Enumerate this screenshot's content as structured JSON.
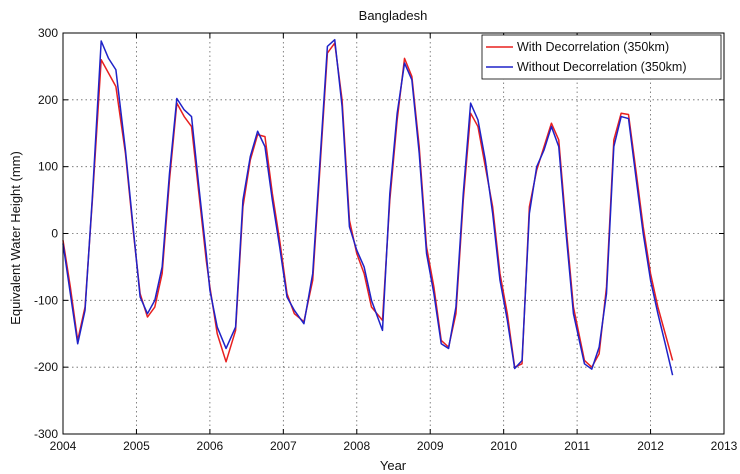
{
  "chart_data": {
    "type": "line",
    "title": "Bangladesh",
    "xlabel": "Year",
    "ylabel": "Equivalent Water Height (mm)",
    "xlim": [
      2004,
      2013
    ],
    "ylim": [
      -300,
      300
    ],
    "xticks": [
      2004,
      2005,
      2006,
      2007,
      2008,
      2009,
      2010,
      2011,
      2012,
      2013
    ],
    "yticks": [
      300,
      200,
      100,
      0,
      -100,
      -200,
      -300
    ],
    "grid": true,
    "legend_position": "top-right",
    "series": [
      {
        "name": "With Decorrelation (350km)",
        "color": "#e8201f",
        "points": [
          [
            2004.0,
            -10
          ],
          [
            2004.1,
            -80
          ],
          [
            2004.2,
            -160
          ],
          [
            2004.3,
            -110
          ],
          [
            2004.4,
            50
          ],
          [
            2004.52,
            260
          ],
          [
            2004.62,
            240
          ],
          [
            2004.72,
            220
          ],
          [
            2004.85,
            120
          ],
          [
            2004.95,
            10
          ],
          [
            2005.05,
            -90
          ],
          [
            2005.15,
            -125
          ],
          [
            2005.25,
            -110
          ],
          [
            2005.35,
            -60
          ],
          [
            2005.45,
            80
          ],
          [
            2005.55,
            195
          ],
          [
            2005.65,
            175
          ],
          [
            2005.75,
            160
          ],
          [
            2005.85,
            60
          ],
          [
            2005.95,
            -40
          ],
          [
            2006.0,
            -80
          ],
          [
            2006.1,
            -150
          ],
          [
            2006.22,
            -192
          ],
          [
            2006.35,
            -145
          ],
          [
            2006.45,
            40
          ],
          [
            2006.55,
            110
          ],
          [
            2006.65,
            148
          ],
          [
            2006.75,
            145
          ],
          [
            2006.85,
            60
          ],
          [
            2006.95,
            -10
          ],
          [
            2007.05,
            -90
          ],
          [
            2007.15,
            -120
          ],
          [
            2007.28,
            -132
          ],
          [
            2007.4,
            -70
          ],
          [
            2007.5,
            100
          ],
          [
            2007.6,
            270
          ],
          [
            2007.7,
            285
          ],
          [
            2007.8,
            200
          ],
          [
            2007.9,
            20
          ],
          [
            2008.0,
            -30
          ],
          [
            2008.1,
            -60
          ],
          [
            2008.2,
            -110
          ],
          [
            2008.35,
            -130
          ],
          [
            2008.45,
            50
          ],
          [
            2008.55,
            170
          ],
          [
            2008.65,
            262
          ],
          [
            2008.75,
            235
          ],
          [
            2008.85,
            130
          ],
          [
            2008.95,
            -20
          ],
          [
            2009.05,
            -80
          ],
          [
            2009.15,
            -160
          ],
          [
            2009.25,
            -170
          ],
          [
            2009.35,
            -120
          ],
          [
            2009.45,
            50
          ],
          [
            2009.55,
            180
          ],
          [
            2009.65,
            160
          ],
          [
            2009.75,
            100
          ],
          [
            2009.85,
            40
          ],
          [
            2009.95,
            -60
          ],
          [
            2010.05,
            -120
          ],
          [
            2010.15,
            -200
          ],
          [
            2010.25,
            -195
          ],
          [
            2010.35,
            40
          ],
          [
            2010.45,
            95
          ],
          [
            2010.55,
            130
          ],
          [
            2010.65,
            165
          ],
          [
            2010.75,
            140
          ],
          [
            2010.85,
            10
          ],
          [
            2010.95,
            -110
          ],
          [
            2011.1,
            -190
          ],
          [
            2011.2,
            -200
          ],
          [
            2011.3,
            -180
          ],
          [
            2011.4,
            -80
          ],
          [
            2011.5,
            140
          ],
          [
            2011.6,
            180
          ],
          [
            2011.7,
            178
          ],
          [
            2011.8,
            95
          ],
          [
            2011.9,
            10
          ],
          [
            2012.0,
            -60
          ],
          [
            2012.1,
            -110
          ],
          [
            2012.2,
            -150
          ],
          [
            2012.3,
            -190
          ]
        ]
      },
      {
        "name": "Without Decorrelation (350km)",
        "color": "#1f22c8",
        "points": [
          [
            2004.0,
            -15
          ],
          [
            2004.1,
            -90
          ],
          [
            2004.2,
            -165
          ],
          [
            2004.3,
            -115
          ],
          [
            2004.4,
            55
          ],
          [
            2004.52,
            288
          ],
          [
            2004.62,
            262
          ],
          [
            2004.72,
            245
          ],
          [
            2004.85,
            125
          ],
          [
            2004.95,
            15
          ],
          [
            2005.05,
            -95
          ],
          [
            2005.15,
            -120
          ],
          [
            2005.25,
            -100
          ],
          [
            2005.35,
            -50
          ],
          [
            2005.45,
            90
          ],
          [
            2005.55,
            202
          ],
          [
            2005.65,
            185
          ],
          [
            2005.75,
            175
          ],
          [
            2005.85,
            70
          ],
          [
            2005.95,
            -30
          ],
          [
            2006.0,
            -85
          ],
          [
            2006.1,
            -140
          ],
          [
            2006.22,
            -172
          ],
          [
            2006.35,
            -140
          ],
          [
            2006.45,
            50
          ],
          [
            2006.55,
            115
          ],
          [
            2006.65,
            153
          ],
          [
            2006.75,
            130
          ],
          [
            2006.85,
            50
          ],
          [
            2006.95,
            -20
          ],
          [
            2007.05,
            -95
          ],
          [
            2007.15,
            -115
          ],
          [
            2007.28,
            -135
          ],
          [
            2007.4,
            -60
          ],
          [
            2007.5,
            110
          ],
          [
            2007.6,
            280
          ],
          [
            2007.7,
            290
          ],
          [
            2007.8,
            190
          ],
          [
            2007.9,
            10
          ],
          [
            2008.0,
            -25
          ],
          [
            2008.1,
            -50
          ],
          [
            2008.2,
            -100
          ],
          [
            2008.35,
            -145
          ],
          [
            2008.45,
            60
          ],
          [
            2008.55,
            180
          ],
          [
            2008.65,
            255
          ],
          [
            2008.75,
            230
          ],
          [
            2008.85,
            120
          ],
          [
            2008.95,
            -30
          ],
          [
            2009.05,
            -90
          ],
          [
            2009.15,
            -165
          ],
          [
            2009.25,
            -172
          ],
          [
            2009.35,
            -110
          ],
          [
            2009.45,
            60
          ],
          [
            2009.55,
            195
          ],
          [
            2009.65,
            170
          ],
          [
            2009.75,
            110
          ],
          [
            2009.85,
            30
          ],
          [
            2009.95,
            -70
          ],
          [
            2010.05,
            -130
          ],
          [
            2010.15,
            -202
          ],
          [
            2010.25,
            -190
          ],
          [
            2010.35,
            30
          ],
          [
            2010.45,
            100
          ],
          [
            2010.55,
            125
          ],
          [
            2010.65,
            160
          ],
          [
            2010.75,
            130
          ],
          [
            2010.85,
            0
          ],
          [
            2010.95,
            -120
          ],
          [
            2011.1,
            -195
          ],
          [
            2011.2,
            -203
          ],
          [
            2011.3,
            -170
          ],
          [
            2011.4,
            -90
          ],
          [
            2011.5,
            130
          ],
          [
            2011.6,
            175
          ],
          [
            2011.7,
            172
          ],
          [
            2011.8,
            85
          ],
          [
            2011.9,
            0
          ],
          [
            2012.0,
            -70
          ],
          [
            2012.1,
            -120
          ],
          [
            2012.2,
            -165
          ],
          [
            2012.3,
            -212
          ]
        ]
      }
    ]
  }
}
